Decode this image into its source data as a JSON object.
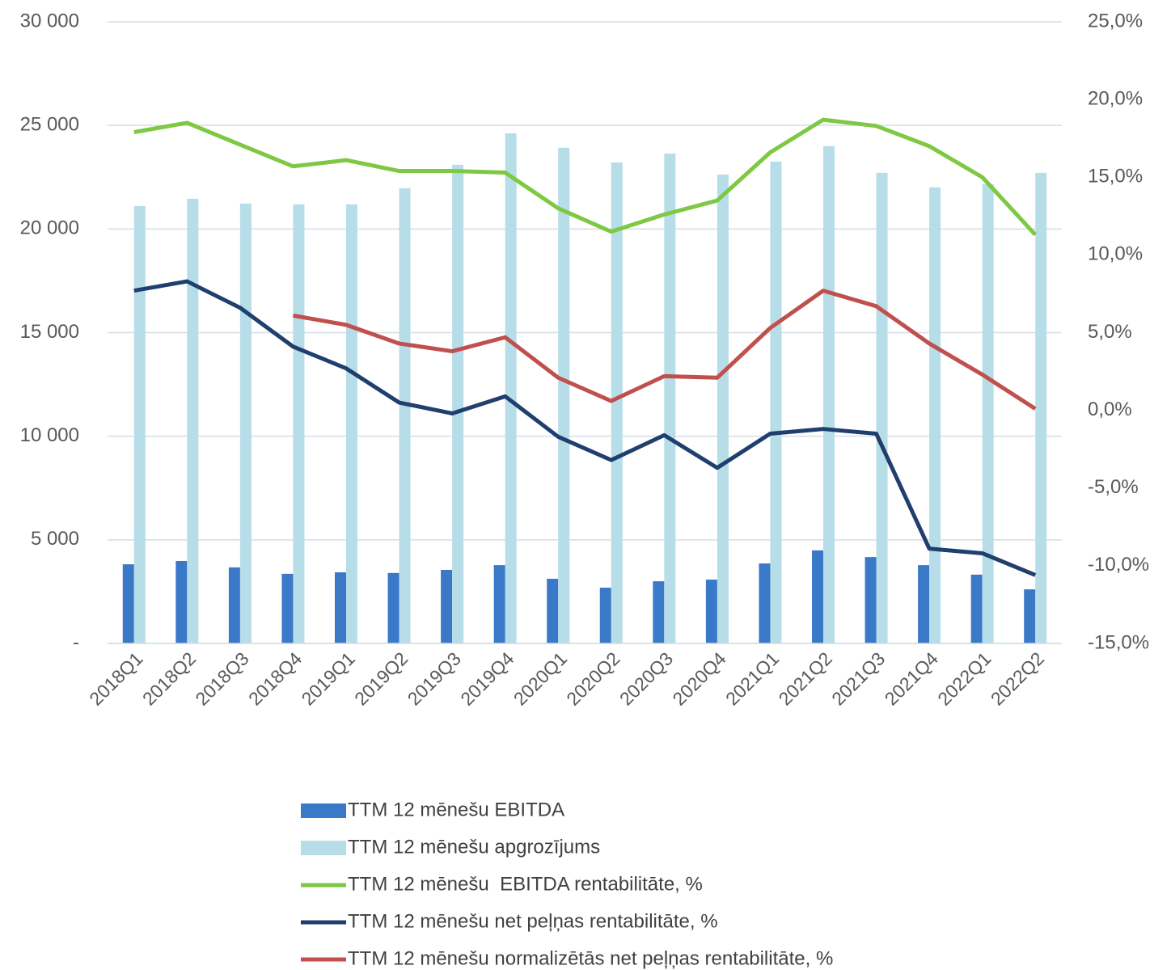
{
  "chart_data": {
    "type": "bar_line",
    "categories": [
      "2018Q1",
      "2018Q2",
      "2018Q3",
      "2018Q4",
      "2019Q1",
      "2019Q2",
      "2019Q3",
      "2019Q4",
      "2020Q1",
      "2020Q2",
      "2020Q3",
      "2020Q4",
      "2021Q1",
      "2021Q2",
      "2021Q3",
      "2021Q4",
      "2022Q1",
      "2022Q2"
    ],
    "series": [
      {
        "name": "TTM 12 mēnešu EBITDA",
        "type": "bar",
        "color": "#3a78c8",
        "values": [
          3820,
          3980,
          3670,
          3360,
          3430,
          3400,
          3550,
          3780,
          3120,
          2690,
          3000,
          3080,
          3860,
          4490,
          4170,
          3780,
          3320,
          2610
        ]
      },
      {
        "name": "TTM 12 mēnešu apgrozījums",
        "type": "bar",
        "color": "#b7dde8",
        "values": [
          21110,
          21460,
          21230,
          21190,
          21190,
          21970,
          23100,
          24620,
          23920,
          23210,
          23640,
          22630,
          23250,
          24000,
          22710,
          22010,
          22160,
          22710
        ]
      },
      {
        "name": "TTM 12 mēnešu  EBITDA rentabilitāte, %",
        "type": "line",
        "axis": "y2",
        "color": "#7ec843",
        "values": [
          17.9,
          18.5,
          17.1,
          15.7,
          16.1,
          15.4,
          15.4,
          15.3,
          13.0,
          11.5,
          12.6,
          13.5,
          16.6,
          18.7,
          18.3,
          17.0,
          15.0,
          11.3
        ]
      },
      {
        "name": "TTM 12 mēnešu net peļņas rentabilitāte, %",
        "type": "line",
        "axis": "y2",
        "color": "#1f3f6e",
        "values": [
          7.7,
          8.3,
          6.6,
          4.1,
          2.7,
          0.5,
          -0.2,
          0.9,
          -1.7,
          -3.2,
          -1.6,
          -3.7,
          -1.5,
          -1.2,
          -1.5,
          -8.9,
          -9.2,
          -10.6
        ]
      },
      {
        "name": "TTM 12 mēnešu normalizētās net peļņas rentabilitāte, %",
        "type": "line",
        "axis": "y2",
        "color": "#c0504d",
        "values": [
          null,
          null,
          null,
          6.1,
          5.5,
          4.3,
          3.8,
          4.7,
          2.1,
          0.6,
          2.2,
          2.1,
          5.3,
          7.7,
          6.7,
          4.3,
          2.3,
          0.1
        ]
      }
    ],
    "ylim": [
      0,
      30000
    ],
    "yticks": [
      {
        "value": 0,
        "label": "-"
      },
      {
        "value": 5000,
        "label": "5 000"
      },
      {
        "value": 10000,
        "label": "10 000"
      },
      {
        "value": 15000,
        "label": "15 000"
      },
      {
        "value": 20000,
        "label": "20 000"
      },
      {
        "value": 25000,
        "label": "25 000"
      },
      {
        "value": 30000,
        "label": "30 000"
      }
    ],
    "y2lim": [
      -15,
      25
    ],
    "y2ticks": [
      {
        "value": -15,
        "label": "-15,0%"
      },
      {
        "value": -10,
        "label": "-10,0%"
      },
      {
        "value": -5,
        "label": "-5,0%"
      },
      {
        "value": 0,
        "label": "0,0%"
      },
      {
        "value": 5,
        "label": "5,0%"
      },
      {
        "value": 10,
        "label": "10,0%"
      },
      {
        "value": 15,
        "label": "15,0%"
      },
      {
        "value": 20,
        "label": "20,0%"
      },
      {
        "value": 25,
        "label": "25,0%"
      }
    ],
    "grid": true,
    "legend": "bottom"
  }
}
